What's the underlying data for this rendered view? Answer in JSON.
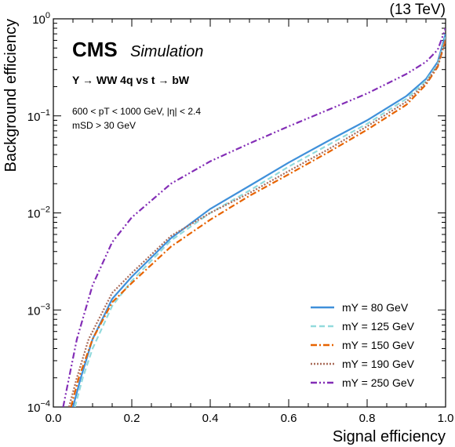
{
  "chart_data": {
    "type": "line",
    "title": "",
    "lumi_label": "(13 TeV)",
    "brand": "CMS",
    "brand_sub": "Simulation",
    "process_label": "Y → WW 4q vs t → bW",
    "cut_line1": "600 < pT < 1000 GeV, |η| < 2.4",
    "cut_line2": "mSD > 30 GeV",
    "xlabel": "Signal efficiency",
    "ylabel": "Background efficiency",
    "xlim": [
      0,
      1
    ],
    "ylim": [
      0.0001,
      1
    ],
    "yscale": "log",
    "x_ticks": [
      0.0,
      0.2,
      0.4,
      0.6,
      0.8,
      1.0
    ],
    "x_tick_labels": [
      "0.0",
      "0.2",
      "0.4",
      "0.6",
      "0.8",
      "1.0"
    ],
    "y_ticks": [
      0.0001,
      0.001,
      0.01,
      0.1,
      1
    ],
    "y_tick_labels": [
      {
        "base": "10",
        "exp": "−4"
      },
      {
        "base": "10",
        "exp": "−3"
      },
      {
        "base": "10",
        "exp": "−2"
      },
      {
        "base": "10",
        "exp": "−1"
      },
      {
        "base": "10",
        "exp": "0"
      }
    ],
    "legend_position": "bottom-right",
    "series": [
      {
        "name": "mY = 80 GeV",
        "color": "#3f90da",
        "dash": "solid",
        "x": [
          0.05,
          0.07,
          0.1,
          0.15,
          0.2,
          0.3,
          0.4,
          0.5,
          0.6,
          0.7,
          0.8,
          0.9,
          0.95,
          0.98,
          1.0
        ],
        "y": [
          0.0001,
          0.0002,
          0.0005,
          0.0013,
          0.0022,
          0.0055,
          0.011,
          0.019,
          0.033,
          0.055,
          0.09,
          0.16,
          0.24,
          0.36,
          0.7
        ]
      },
      {
        "name": "mY = 125 GeV",
        "color": "#92dadd",
        "dash": "dashed",
        "x": [
          0.055,
          0.075,
          0.1,
          0.15,
          0.2,
          0.3,
          0.4,
          0.5,
          0.6,
          0.7,
          0.8,
          0.9,
          0.95,
          0.98,
          1.0
        ],
        "y": [
          0.0001,
          0.0002,
          0.0004,
          0.0011,
          0.002,
          0.0052,
          0.01,
          0.017,
          0.03,
          0.05,
          0.083,
          0.15,
          0.23,
          0.34,
          0.65
        ]
      },
      {
        "name": "mY = 150 GeV",
        "color": "#e76300",
        "dash": "dashdot",
        "x": [
          0.045,
          0.065,
          0.1,
          0.15,
          0.2,
          0.3,
          0.4,
          0.5,
          0.6,
          0.7,
          0.8,
          0.9,
          0.95,
          0.98,
          1.0
        ],
        "y": [
          0.0001,
          0.0002,
          0.0005,
          0.0012,
          0.0019,
          0.0045,
          0.0085,
          0.015,
          0.025,
          0.042,
          0.072,
          0.13,
          0.21,
          0.32,
          0.6
        ]
      },
      {
        "name": "mY = 190 GeV",
        "color": "#a96b59",
        "dash": "dotted",
        "x": [
          0.04,
          0.06,
          0.09,
          0.15,
          0.2,
          0.3,
          0.4,
          0.5,
          0.6,
          0.7,
          0.8,
          0.9,
          0.95,
          0.98,
          1.0
        ],
        "y": [
          0.0001,
          0.0002,
          0.0005,
          0.0015,
          0.0024,
          0.0058,
          0.01,
          0.016,
          0.027,
          0.045,
          0.078,
          0.14,
          0.22,
          0.33,
          0.62
        ]
      },
      {
        "name": "mY = 250 GeV",
        "color": "#832db6",
        "dash": "dashdotdot",
        "x": [
          0.025,
          0.04,
          0.06,
          0.1,
          0.15,
          0.2,
          0.3,
          0.4,
          0.5,
          0.6,
          0.7,
          0.8,
          0.9,
          0.95,
          0.98,
          1.0
        ],
        "y": [
          0.0001,
          0.0002,
          0.0005,
          0.0018,
          0.005,
          0.009,
          0.02,
          0.034,
          0.052,
          0.078,
          0.115,
          0.17,
          0.27,
          0.36,
          0.48,
          0.8
        ]
      }
    ]
  }
}
